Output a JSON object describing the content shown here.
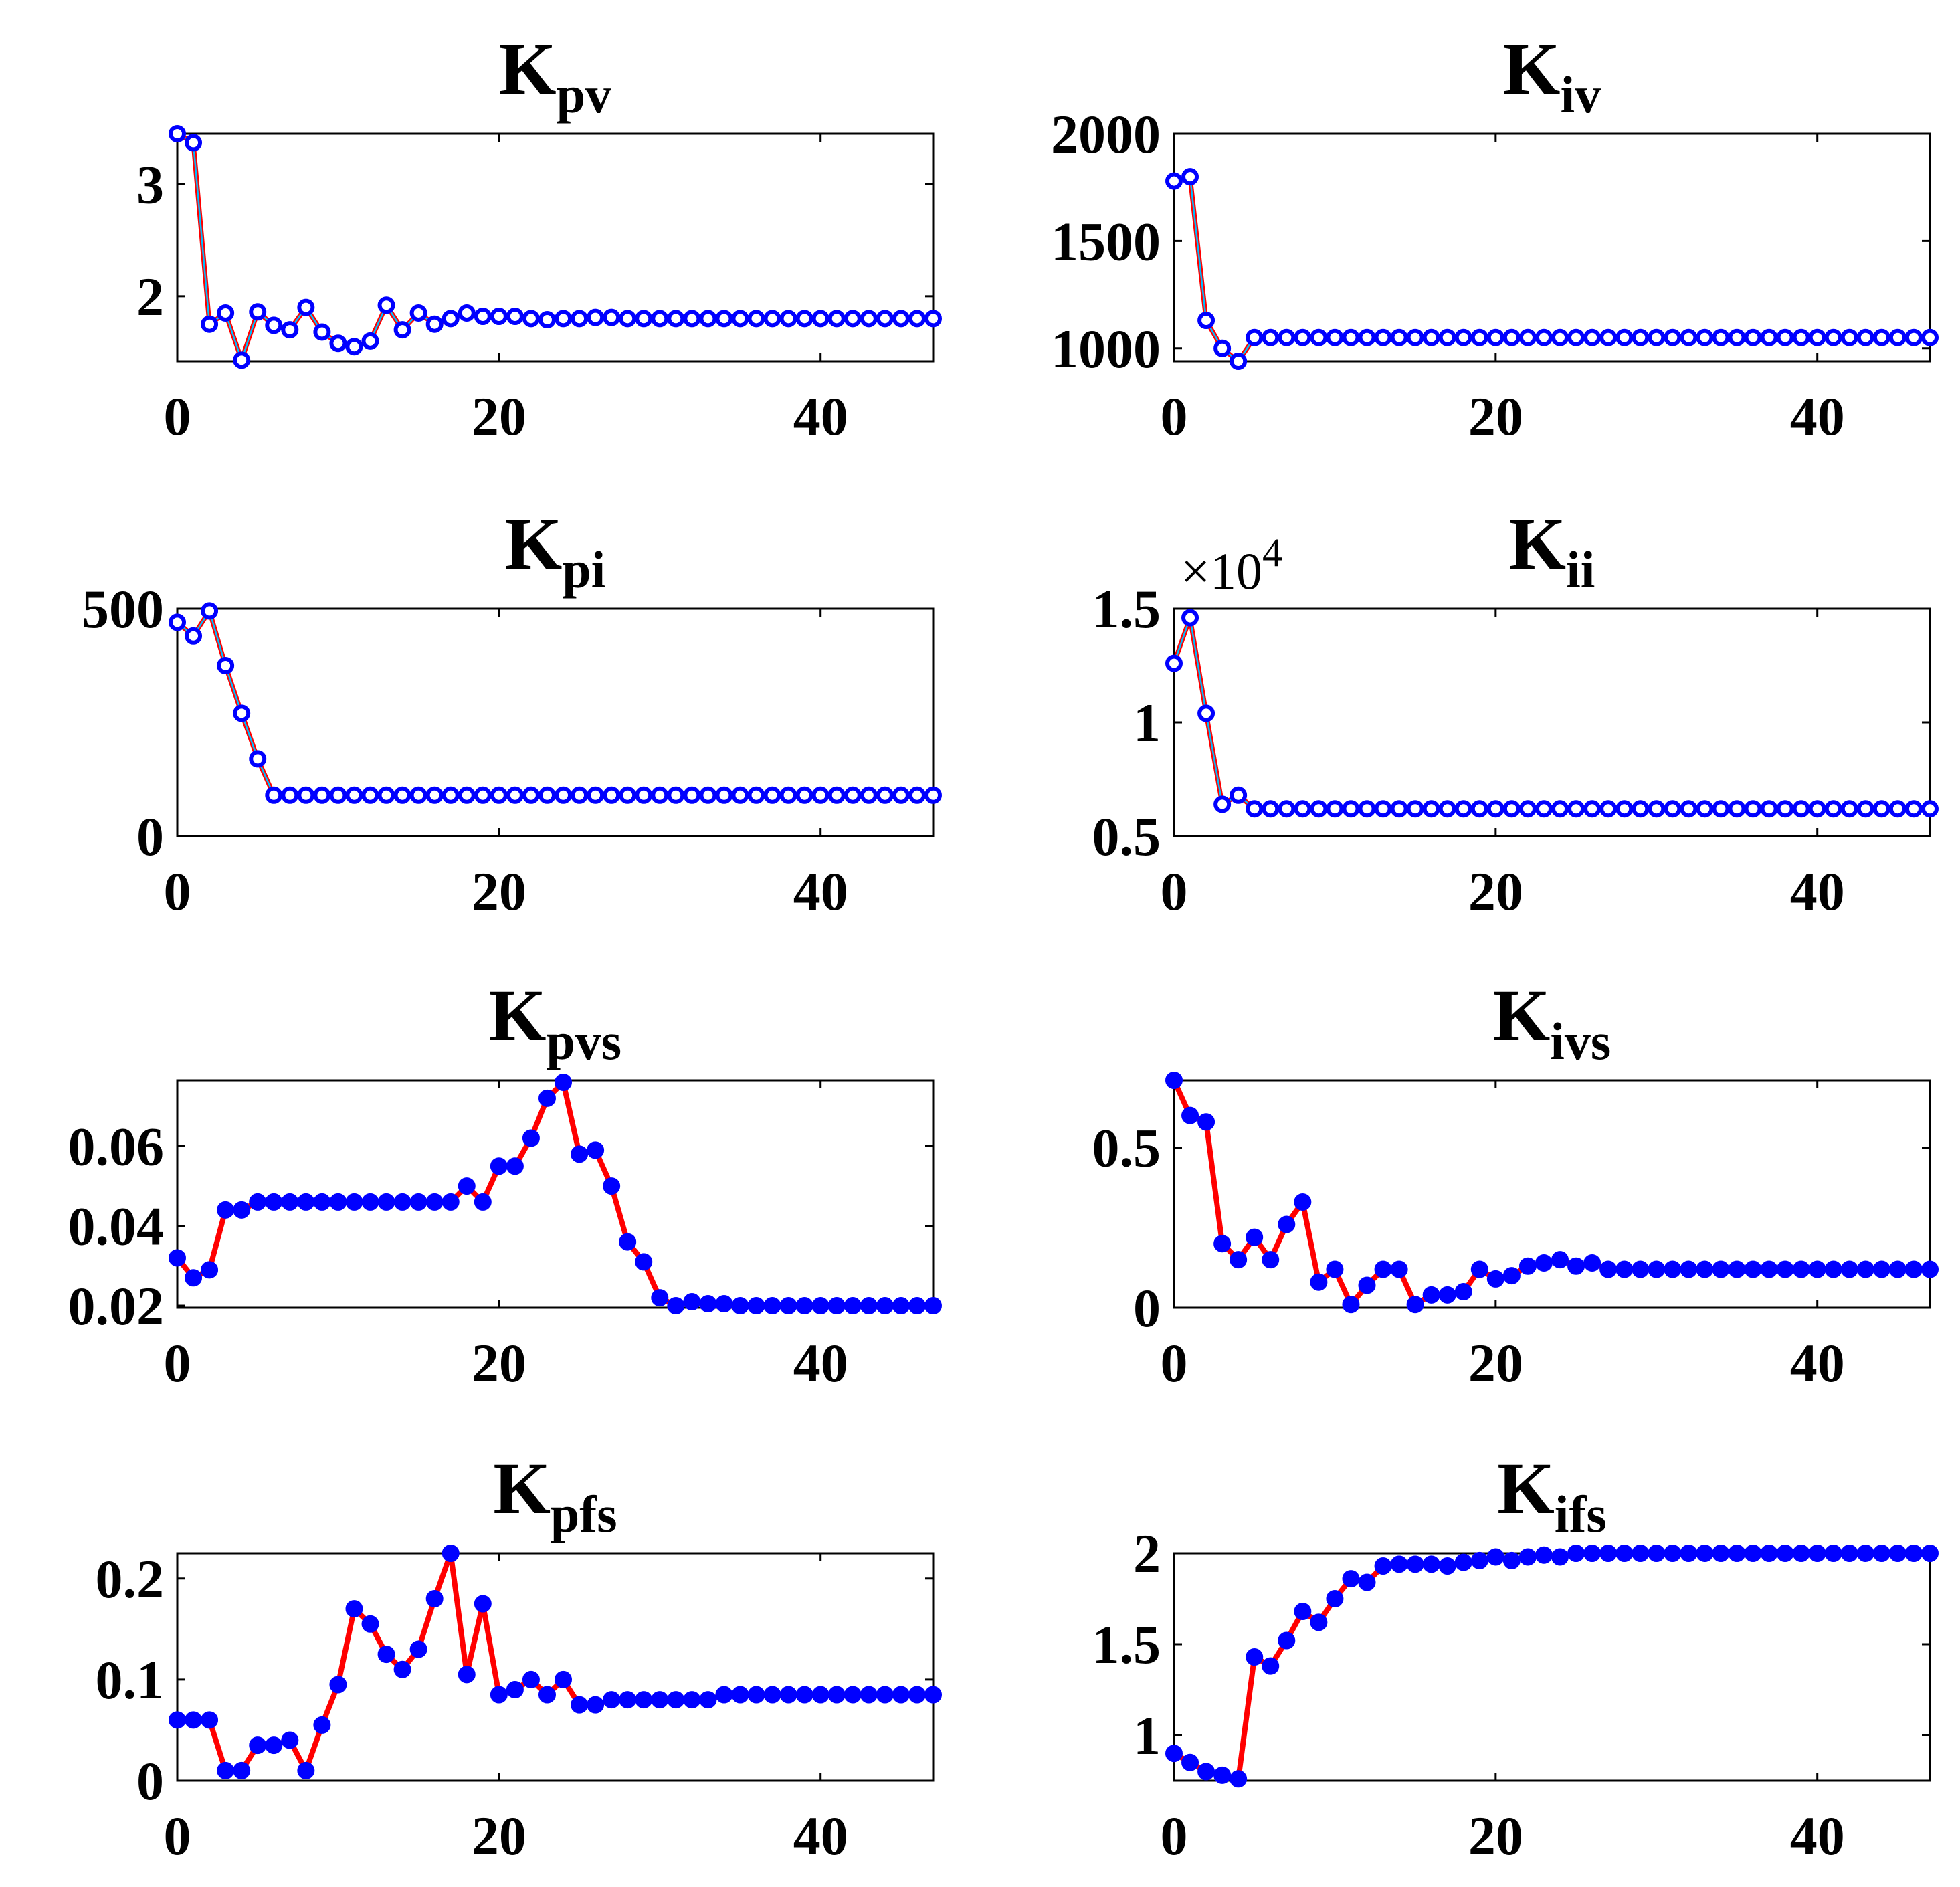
{
  "colors": {
    "line": "#ff0000",
    "marker": "#0000ff",
    "marker_inner": "#00bfff",
    "axis": "#000000"
  },
  "chart_data": [
    {
      "type": "line",
      "title": "K",
      "title_sub": "pv",
      "marker": "open-circle",
      "xlim": [
        0,
        47
      ],
      "ylim": [
        1.42,
        3.45
      ],
      "xticks": [
        0,
        20,
        40
      ],
      "yticks": [
        2,
        3
      ],
      "series": [
        {
          "x": [
            0,
            1,
            2,
            3,
            4,
            5,
            6,
            7,
            8,
            9,
            10,
            11,
            12,
            13,
            14,
            15,
            16,
            17,
            18,
            19,
            20,
            21,
            22,
            23,
            24,
            25,
            26,
            27,
            28,
            29,
            30,
            31,
            32,
            33,
            34,
            35,
            36,
            37,
            38,
            39,
            40,
            41,
            42,
            43,
            44,
            45,
            46,
            47
          ],
          "values": [
            3.45,
            3.37,
            1.75,
            1.85,
            1.43,
            1.86,
            1.74,
            1.7,
            1.9,
            1.68,
            1.58,
            1.55,
            1.6,
            1.92,
            1.7,
            1.85,
            1.75,
            1.8,
            1.85,
            1.82,
            1.82,
            1.82,
            1.8,
            1.79,
            1.8,
            1.8,
            1.81,
            1.81,
            1.8,
            1.8,
            1.8,
            1.8,
            1.8,
            1.8,
            1.8,
            1.8,
            1.8,
            1.8,
            1.8,
            1.8,
            1.8,
            1.8,
            1.8,
            1.8,
            1.8,
            1.8,
            1.8,
            1.8
          ]
        }
      ]
    },
    {
      "type": "line",
      "title": "K",
      "title_sub": "iv",
      "marker": "open-circle",
      "xlim": [
        0,
        47
      ],
      "ylim": [
        940,
        2000
      ],
      "xticks": [
        0,
        20,
        40
      ],
      "yticks": [
        1000,
        1500,
        2000
      ],
      "series": [
        {
          "x": [
            0,
            1,
            2,
            3,
            4,
            5,
            6,
            7,
            8,
            9,
            10,
            11,
            12,
            13,
            14,
            15,
            16,
            17,
            18,
            19,
            20,
            21,
            22,
            23,
            24,
            25,
            26,
            27,
            28,
            29,
            30,
            31,
            32,
            33,
            34,
            35,
            36,
            37,
            38,
            39,
            40,
            41,
            42,
            43,
            44,
            45,
            46,
            47
          ],
          "values": [
            1780,
            1800,
            1130,
            1000,
            940,
            1050,
            1050,
            1050,
            1050,
            1050,
            1050,
            1050,
            1050,
            1050,
            1050,
            1050,
            1050,
            1050,
            1050,
            1050,
            1050,
            1050,
            1050,
            1050,
            1050,
            1050,
            1050,
            1050,
            1050,
            1050,
            1050,
            1050,
            1050,
            1050,
            1050,
            1050,
            1050,
            1050,
            1050,
            1050,
            1050,
            1050,
            1050,
            1050,
            1050,
            1050,
            1050,
            1050
          ]
        }
      ]
    },
    {
      "type": "line",
      "title": "K",
      "title_sub": "pi",
      "marker": "open-circle",
      "xlim": [
        0,
        47
      ],
      "ylim": [
        0,
        500
      ],
      "xticks": [
        0,
        20,
        40
      ],
      "yticks": [
        0,
        500
      ],
      "series": [
        {
          "x": [
            0,
            1,
            2,
            3,
            4,
            5,
            6,
            7,
            8,
            9,
            10,
            11,
            12,
            13,
            14,
            15,
            16,
            17,
            18,
            19,
            20,
            21,
            22,
            23,
            24,
            25,
            26,
            27,
            28,
            29,
            30,
            31,
            32,
            33,
            34,
            35,
            36,
            37,
            38,
            39,
            40,
            41,
            42,
            43,
            44,
            45,
            46,
            47
          ],
          "values": [
            470,
            440,
            495,
            375,
            270,
            170,
            90,
            90,
            90,
            90,
            90,
            90,
            90,
            90,
            90,
            90,
            90,
            90,
            90,
            90,
            90,
            90,
            90,
            90,
            90,
            90,
            90,
            90,
            90,
            90,
            90,
            90,
            90,
            90,
            90,
            90,
            90,
            90,
            90,
            90,
            90,
            90,
            90,
            90,
            90,
            90,
            90,
            90
          ]
        }
      ]
    },
    {
      "type": "line",
      "title": "K",
      "title_sub": "ii",
      "marker": "open-circle",
      "xlim": [
        0,
        47
      ],
      "ylim": [
        0.5,
        1.5
      ],
      "y_multiplier": "×10",
      "y_multiplier_exp": "4",
      "xticks": [
        0,
        20,
        40
      ],
      "yticks": [
        0.5,
        1,
        1.5
      ],
      "series": [
        {
          "x": [
            0,
            1,
            2,
            3,
            4,
            5,
            6,
            7,
            8,
            9,
            10,
            11,
            12,
            13,
            14,
            15,
            16,
            17,
            18,
            19,
            20,
            21,
            22,
            23,
            24,
            25,
            26,
            27,
            28,
            29,
            30,
            31,
            32,
            33,
            34,
            35,
            36,
            37,
            38,
            39,
            40,
            41,
            42,
            43,
            44,
            45,
            46,
            47
          ],
          "values": [
            1.26,
            1.46,
            1.04,
            0.64,
            0.68,
            0.62,
            0.62,
            0.62,
            0.62,
            0.62,
            0.62,
            0.62,
            0.62,
            0.62,
            0.62,
            0.62,
            0.62,
            0.62,
            0.62,
            0.62,
            0.62,
            0.62,
            0.62,
            0.62,
            0.62,
            0.62,
            0.62,
            0.62,
            0.62,
            0.62,
            0.62,
            0.62,
            0.62,
            0.62,
            0.62,
            0.62,
            0.62,
            0.62,
            0.62,
            0.62,
            0.62,
            0.62,
            0.62,
            0.62,
            0.62,
            0.62,
            0.62,
            0.62
          ]
        }
      ]
    },
    {
      "type": "line",
      "title": "K",
      "title_sub": "pvs",
      "marker": "filled-circle",
      "xlim": [
        0,
        47
      ],
      "ylim": [
        0.0195,
        0.0765
      ],
      "xticks": [
        0,
        20,
        40
      ],
      "yticks": [
        0.02,
        0.04,
        0.06
      ],
      "series": [
        {
          "x": [
            0,
            1,
            2,
            3,
            4,
            5,
            6,
            7,
            8,
            9,
            10,
            11,
            12,
            13,
            14,
            15,
            16,
            17,
            18,
            19,
            20,
            21,
            22,
            23,
            24,
            25,
            26,
            27,
            28,
            29,
            30,
            31,
            32,
            33,
            34,
            35,
            36,
            37,
            38,
            39,
            40,
            41,
            42,
            43,
            44,
            45,
            46,
            47
          ],
          "values": [
            0.032,
            0.027,
            0.029,
            0.044,
            0.044,
            0.046,
            0.046,
            0.046,
            0.046,
            0.046,
            0.046,
            0.046,
            0.046,
            0.046,
            0.046,
            0.046,
            0.046,
            0.046,
            0.05,
            0.046,
            0.055,
            0.055,
            0.062,
            0.072,
            0.076,
            0.058,
            0.059,
            0.05,
            0.036,
            0.031,
            0.022,
            0.02,
            0.021,
            0.0205,
            0.0205,
            0.02,
            0.02,
            0.02,
            0.02,
            0.02,
            0.02,
            0.02,
            0.02,
            0.02,
            0.02,
            0.02,
            0.02,
            0.02
          ]
        }
      ]
    },
    {
      "type": "line",
      "title": "K",
      "title_sub": "ivs",
      "marker": "filled-circle",
      "xlim": [
        0,
        47
      ],
      "ylim": [
        0,
        0.71
      ],
      "xticks": [
        0,
        20,
        40
      ],
      "yticks": [
        0,
        0.5
      ],
      "series": [
        {
          "x": [
            0,
            1,
            2,
            3,
            4,
            5,
            6,
            7,
            8,
            9,
            10,
            11,
            12,
            13,
            14,
            15,
            16,
            17,
            18,
            19,
            20,
            21,
            22,
            23,
            24,
            25,
            26,
            27,
            28,
            29,
            30,
            31,
            32,
            33,
            34,
            35,
            36,
            37,
            38,
            39,
            40,
            41,
            42,
            43,
            44,
            45,
            46,
            47
          ],
          "values": [
            0.71,
            0.6,
            0.58,
            0.2,
            0.15,
            0.22,
            0.15,
            0.26,
            0.33,
            0.08,
            0.12,
            0.01,
            0.07,
            0.12,
            0.12,
            0.01,
            0.04,
            0.04,
            0.05,
            0.12,
            0.09,
            0.1,
            0.13,
            0.14,
            0.15,
            0.13,
            0.14,
            0.12,
            0.12,
            0.12,
            0.12,
            0.12,
            0.12,
            0.12,
            0.12,
            0.12,
            0.12,
            0.12,
            0.12,
            0.12,
            0.12,
            0.12,
            0.12,
            0.12,
            0.12,
            0.12,
            0.12,
            0.12
          ]
        }
      ]
    },
    {
      "type": "line",
      "title": "K",
      "title_sub": "pfs",
      "marker": "filled-circle",
      "xlim": [
        0,
        47
      ],
      "ylim": [
        0,
        0.225
      ],
      "xticks": [
        0,
        20,
        40
      ],
      "yticks": [
        0,
        0.1,
        0.2
      ],
      "series": [
        {
          "x": [
            0,
            1,
            2,
            3,
            4,
            5,
            6,
            7,
            8,
            9,
            10,
            11,
            12,
            13,
            14,
            15,
            16,
            17,
            18,
            19,
            20,
            21,
            22,
            23,
            24,
            25,
            26,
            27,
            28,
            29,
            30,
            31,
            32,
            33,
            34,
            35,
            36,
            37,
            38,
            39,
            40,
            41,
            42,
            43,
            44,
            45,
            46,
            47
          ],
          "values": [
            0.06,
            0.06,
            0.06,
            0.01,
            0.01,
            0.035,
            0.035,
            0.04,
            0.01,
            0.055,
            0.095,
            0.17,
            0.155,
            0.125,
            0.11,
            0.13,
            0.18,
            0.225,
            0.105,
            0.175,
            0.085,
            0.09,
            0.1,
            0.085,
            0.1,
            0.075,
            0.075,
            0.08,
            0.08,
            0.08,
            0.08,
            0.08,
            0.08,
            0.08,
            0.085,
            0.085,
            0.085,
            0.085,
            0.085,
            0.085,
            0.085,
            0.085,
            0.085,
            0.085,
            0.085,
            0.085,
            0.085,
            0.085
          ]
        }
      ]
    },
    {
      "type": "line",
      "title": "K",
      "title_sub": "ifs",
      "marker": "filled-circle",
      "xlim": [
        0,
        47
      ],
      "ylim": [
        0.75,
        2.0
      ],
      "xticks": [
        0,
        20,
        40
      ],
      "yticks": [
        1,
        1.5,
        2
      ],
      "series": [
        {
          "x": [
            0,
            1,
            2,
            3,
            4,
            5,
            6,
            7,
            8,
            9,
            10,
            11,
            12,
            13,
            14,
            15,
            16,
            17,
            18,
            19,
            20,
            21,
            22,
            23,
            24,
            25,
            26,
            27,
            28,
            29,
            30,
            31,
            32,
            33,
            34,
            35,
            36,
            37,
            38,
            39,
            40,
            41,
            42,
            43,
            44,
            45,
            46,
            47
          ],
          "values": [
            0.9,
            0.85,
            0.8,
            0.78,
            0.76,
            1.43,
            1.38,
            1.52,
            1.68,
            1.62,
            1.75,
            1.86,
            1.84,
            1.93,
            1.94,
            1.94,
            1.94,
            1.93,
            1.95,
            1.96,
            1.98,
            1.96,
            1.98,
            1.99,
            1.98,
            2.0,
            2.0,
            2.0,
            2.0,
            2.0,
            2.0,
            2.0,
            2.0,
            2.0,
            2.0,
            2.0,
            2.0,
            2.0,
            2.0,
            2.0,
            2.0,
            2.0,
            2.0,
            2.0,
            2.0,
            2.0,
            2.0,
            2.0
          ]
        }
      ]
    }
  ]
}
